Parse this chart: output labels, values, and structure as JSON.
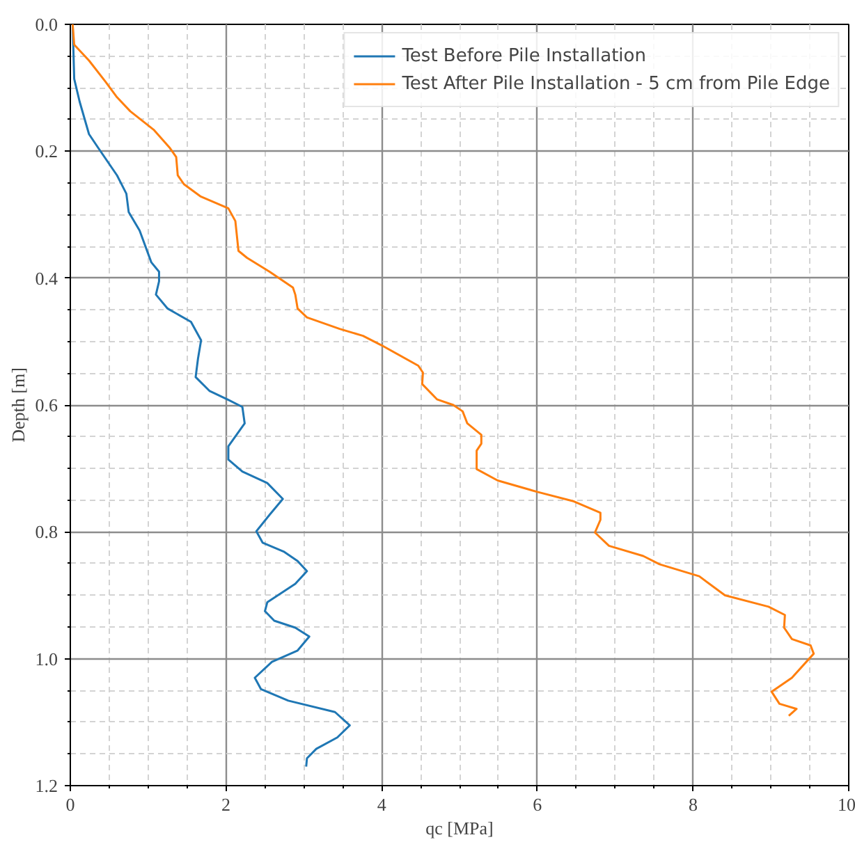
{
  "chart_data": {
    "type": "line",
    "xlabel": "qc [MPa]",
    "ylabel": "Depth [m]",
    "xlim": [
      0,
      10
    ],
    "xticks": [
      0,
      2,
      4,
      6,
      8,
      10
    ],
    "ylim": [
      1.2,
      0
    ],
    "yticks": [
      {
        "value": 0,
        "label": "0.0"
      },
      0.2,
      0.4,
      0.6,
      0.8,
      {
        "value": 1.0,
        "label": "1.0"
      },
      1.2
    ],
    "grid": true,
    "legend": "top right",
    "line_style": "solid",
    "series": [
      {
        "name": "Test Before Pile Installation",
        "color": "#1f77b4",
        "x": [
          0.03,
          0.05,
          0.12,
          0.24,
          0.36,
          0.6,
          0.72,
          0.75,
          0.89,
          1.04,
          1.14,
          1.14,
          1.1,
          1.25,
          1.55,
          1.68,
          1.64,
          1.61,
          1.79,
          2.03,
          2.21,
          2.24,
          2.03,
          2.03,
          2.21,
          2.53,
          2.73,
          2.56,
          2.39,
          2.47,
          2.74,
          2.92,
          3.04,
          2.89,
          2.53,
          2.5,
          2.62,
          2.89,
          3.07,
          2.92,
          2.59,
          2.37,
          2.45,
          2.8,
          3.4,
          3.59,
          3.43,
          3.16,
          3.04,
          3.03
        ],
        "values": [
          0,
          0.086,
          0.122,
          0.173,
          0.195,
          0.238,
          0.267,
          0.296,
          0.325,
          0.375,
          0.39,
          0.405,
          0.426,
          0.448,
          0.469,
          0.498,
          0.527,
          0.556,
          0.578,
          0.592,
          0.603,
          0.629,
          0.665,
          0.686,
          0.705,
          0.723,
          0.748,
          0.773,
          0.799,
          0.817,
          0.831,
          0.846,
          0.862,
          0.882,
          0.911,
          0.925,
          0.94,
          0.951,
          0.965,
          0.987,
          1.005,
          1.03,
          1.048,
          1.066,
          1.084,
          1.105,
          1.124,
          1.142,
          1.157,
          1.17
        ]
      },
      {
        "name": "Test After Pile Installation - 5 cm from Pile Edge",
        "color": "#ff7f0e",
        "x": [
          0.03,
          0.05,
          0.24,
          0.45,
          0.6,
          0.77,
          1.07,
          1.28,
          1.36,
          1.38,
          1.46,
          1.67,
          2.03,
          2.12,
          2.16,
          2.27,
          2.56,
          2.86,
          2.89,
          2.92,
          3.04,
          3.46,
          3.76,
          4.0,
          4.47,
          4.53,
          4.52,
          4.71,
          4.92,
          5.04,
          5.1,
          5.28,
          5.28,
          5.22,
          5.22,
          5.49,
          6.0,
          6.47,
          6.81,
          6.81,
          6.74,
          6.92,
          7.36,
          7.57,
          8.08,
          8.41,
          8.97,
          9.18,
          9.17,
          9.27,
          9.51,
          9.55,
          9.27,
          9.01,
          9.11,
          9.33,
          9.23
        ],
        "values": [
          0,
          0.032,
          0.057,
          0.09,
          0.115,
          0.137,
          0.166,
          0.195,
          0.209,
          0.238,
          0.252,
          0.271,
          0.29,
          0.31,
          0.357,
          0.368,
          0.39,
          0.415,
          0.426,
          0.448,
          0.462,
          0.48,
          0.491,
          0.506,
          0.538,
          0.549,
          0.567,
          0.591,
          0.6,
          0.61,
          0.629,
          0.647,
          0.661,
          0.672,
          0.701,
          0.719,
          0.737,
          0.752,
          0.77,
          0.781,
          0.801,
          0.822,
          0.838,
          0.851,
          0.87,
          0.9,
          0.918,
          0.931,
          0.951,
          0.969,
          0.979,
          0.992,
          1.03,
          1.052,
          1.071,
          1.079,
          1.09
        ]
      }
    ]
  }
}
